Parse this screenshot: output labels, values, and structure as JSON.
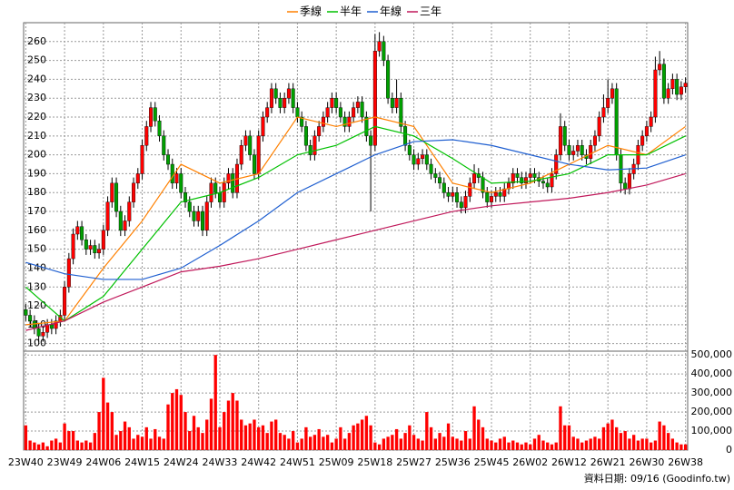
{
  "chart_data": {
    "type": "candlestick",
    "legend_position": "top",
    "grid": true,
    "categories": [
      "23W40",
      null,
      null,
      null,
      null,
      null,
      null,
      null,
      null,
      "23W49",
      null,
      null,
      null,
      null,
      null,
      null,
      null,
      null,
      "24W06",
      null,
      null,
      null,
      null,
      null,
      null,
      null,
      null,
      "24W15",
      null,
      null,
      null,
      null,
      null,
      null,
      null,
      null,
      "24W24",
      null,
      null,
      null,
      null,
      null,
      null,
      null,
      null,
      "24W33",
      null,
      null,
      null,
      null,
      null,
      null,
      null,
      null,
      "24W42",
      null,
      null,
      null,
      null,
      null,
      null,
      null,
      null,
      "24W51",
      null,
      null,
      null,
      null,
      null,
      null,
      null,
      null,
      "25W09",
      null,
      null,
      null,
      null,
      null,
      null,
      null,
      null,
      "25W18",
      null,
      null,
      null,
      null,
      null,
      null,
      null,
      null,
      "25W27",
      null,
      null,
      null,
      null,
      null,
      null,
      null,
      null,
      "25W36",
      null,
      null,
      null,
      null,
      null,
      null,
      null,
      null,
      "25W45",
      null,
      null,
      null,
      null,
      null,
      null,
      null,
      null,
      "26W02",
      null,
      null,
      null,
      null,
      null,
      null,
      null,
      null,
      "26W12",
      null,
      null,
      null,
      null,
      null,
      null,
      null,
      null,
      "26W21",
      null,
      null,
      null,
      null,
      null,
      null,
      null,
      null,
      "26W30",
      null,
      null,
      null,
      null,
      null,
      null,
      null,
      null,
      "26W38"
    ],
    "open": [
      118,
      115,
      112,
      108,
      104,
      106,
      110,
      108,
      112,
      115,
      130,
      145,
      158,
      162,
      155,
      150,
      152,
      148,
      150,
      160,
      175,
      185,
      170,
      160,
      165,
      175,
      185,
      190,
      205,
      215,
      225,
      218,
      210,
      200,
      195,
      185,
      190,
      180,
      175,
      170,
      165,
      170,
      160,
      175,
      185,
      180,
      175,
      185,
      190,
      180,
      195,
      205,
      210,
      200,
      190,
      210,
      220,
      225,
      235,
      230,
      225,
      230,
      235,
      225,
      220,
      215,
      205,
      200,
      210,
      215,
      220,
      225,
      230,
      225,
      220,
      215,
      220,
      225,
      228,
      220,
      210,
      205,
      255,
      260,
      250,
      230,
      225,
      230,
      215,
      205,
      200,
      195,
      198,
      200,
      195,
      190,
      188,
      185,
      180,
      178,
      180,
      175,
      172,
      178,
      185,
      190,
      188,
      180,
      175,
      178,
      180,
      178,
      182,
      185,
      190,
      188,
      185,
      188,
      190,
      188,
      186,
      185,
      183,
      190,
      200,
      215,
      205,
      200,
      202,
      205,
      200,
      198,
      205,
      210,
      220,
      225,
      230,
      235,
      200,
      185,
      182,
      190,
      195,
      205,
      210,
      215,
      220,
      245,
      248,
      230,
      235,
      240,
      232,
      236
    ],
    "high": [
      121,
      118,
      115,
      111,
      109,
      113,
      113,
      115,
      118,
      133,
      148,
      161,
      165,
      165,
      158,
      155,
      155,
      153,
      163,
      178,
      188,
      188,
      173,
      168,
      178,
      188,
      193,
      208,
      218,
      228,
      228,
      221,
      213,
      203,
      198,
      193,
      193,
      183,
      178,
      173,
      173,
      173,
      178,
      188,
      188,
      183,
      188,
      193,
      193,
      198,
      208,
      213,
      213,
      203,
      213,
      223,
      228,
      238,
      238,
      233,
      233,
      238,
      238,
      228,
      223,
      218,
      208,
      213,
      218,
      223,
      228,
      233,
      233,
      228,
      223,
      223,
      228,
      231,
      231,
      223,
      213,
      264,
      265,
      263,
      253,
      233,
      240,
      233,
      218,
      208,
      203,
      201,
      203,
      203,
      198,
      193,
      191,
      188,
      183,
      183,
      183,
      178,
      181,
      188,
      195,
      193,
      191,
      183,
      181,
      183,
      183,
      185,
      188,
      193,
      193,
      191,
      191,
      193,
      193,
      191,
      189,
      188,
      193,
      203,
      222,
      218,
      208,
      205,
      208,
      208,
      203,
      208,
      213,
      223,
      232,
      240,
      238,
      238,
      203,
      188,
      193,
      198,
      208,
      213,
      218,
      223,
      252,
      255,
      251,
      238,
      243,
      243,
      239,
      241
    ],
    "low": [
      112,
      109,
      105,
      101,
      101,
      103,
      105,
      105,
      109,
      112,
      127,
      142,
      155,
      152,
      147,
      147,
      145,
      145,
      147,
      157,
      172,
      167,
      157,
      157,
      162,
      172,
      182,
      187,
      202,
      212,
      215,
      207,
      197,
      192,
      182,
      182,
      177,
      172,
      167,
      162,
      162,
      157,
      157,
      172,
      177,
      172,
      172,
      182,
      177,
      177,
      192,
      202,
      197,
      187,
      187,
      207,
      217,
      222,
      227,
      222,
      222,
      227,
      222,
      217,
      212,
      202,
      197,
      197,
      207,
      212,
      217,
      222,
      222,
      217,
      212,
      212,
      217,
      222,
      217,
      207,
      170,
      202,
      252,
      247,
      227,
      222,
      222,
      212,
      202,
      197,
      192,
      192,
      195,
      192,
      187,
      185,
      182,
      177,
      175,
      175,
      172,
      169,
      169,
      175,
      182,
      185,
      177,
      172,
      172,
      175,
      175,
      175,
      179,
      182,
      185,
      182,
      182,
      185,
      185,
      183,
      182,
      180,
      180,
      187,
      197,
      202,
      197,
      197,
      199,
      197,
      195,
      195,
      202,
      207,
      217,
      222,
      227,
      197,
      180,
      179,
      179,
      187,
      192,
      202,
      207,
      212,
      217,
      242,
      227,
      227,
      232,
      229,
      229,
      233
    ],
    "close": [
      115,
      112,
      108,
      104,
      106,
      110,
      108,
      112,
      115,
      130,
      145,
      158,
      162,
      155,
      150,
      152,
      148,
      150,
      160,
      175,
      185,
      170,
      160,
      165,
      175,
      185,
      190,
      205,
      215,
      225,
      218,
      210,
      200,
      195,
      185,
      190,
      180,
      175,
      170,
      165,
      170,
      160,
      175,
      185,
      180,
      175,
      185,
      190,
      180,
      195,
      205,
      210,
      200,
      190,
      210,
      220,
      225,
      235,
      230,
      225,
      230,
      235,
      225,
      220,
      215,
      205,
      200,
      210,
      215,
      220,
      225,
      230,
      225,
      220,
      215,
      220,
      225,
      228,
      220,
      210,
      205,
      255,
      260,
      250,
      230,
      225,
      230,
      215,
      205,
      200,
      195,
      198,
      200,
      195,
      190,
      188,
      185,
      180,
      178,
      180,
      175,
      172,
      178,
      185,
      190,
      188,
      180,
      175,
      178,
      180,
      178,
      182,
      185,
      190,
      188,
      185,
      188,
      190,
      188,
      186,
      185,
      183,
      190,
      200,
      215,
      205,
      200,
      202,
      205,
      200,
      198,
      205,
      210,
      220,
      225,
      230,
      235,
      200,
      185,
      182,
      190,
      195,
      205,
      210,
      215,
      220,
      245,
      248,
      230,
      235,
      240,
      232,
      236,
      238
    ],
    "up_color": "#ff0000",
    "down_color": "#00a000",
    "ylim": [
      96,
      270
    ],
    "yticks": [
      100,
      110,
      120,
      130,
      140,
      150,
      160,
      170,
      180,
      190,
      200,
      210,
      220,
      230,
      240,
      250,
      260
    ],
    "moving_averages": [
      {
        "name": "季線",
        "color": "#ff8000",
        "x": [
          "23W40",
          "23W49",
          "24W06",
          "24W15",
          "24W24",
          "24W33",
          "24W42",
          "24W51",
          "25W09",
          "25W18",
          "25W27",
          "25W36",
          "25W45",
          "26W02",
          "26W12",
          "26W21",
          "26W30",
          "26W38"
        ],
        "values": [
          110,
          112,
          140,
          165,
          195,
          185,
          190,
          220,
          215,
          220,
          215,
          185,
          180,
          185,
          195,
          205,
          200,
          215
        ]
      },
      {
        "name": "半年",
        "color": "#00c000",
        "x": [
          "23W40",
          "23W49",
          "24W06",
          "24W15",
          "24W24",
          "24W33",
          "24W42",
          "24W51",
          "25W09",
          "25W18",
          "25W27",
          "25W36",
          "25W45",
          "26W02",
          "26W12",
          "26W21",
          "26W30",
          "26W38"
        ],
        "values": [
          130,
          112,
          125,
          150,
          175,
          180,
          188,
          200,
          205,
          215,
          210,
          198,
          185,
          186,
          190,
          200,
          200,
          210
        ]
      },
      {
        "name": "年線",
        "color": "#1f5fd0",
        "x": [
          "23W40",
          "23W49",
          "24W06",
          "24W15",
          "24W24",
          "24W33",
          "24W42",
          "24W51",
          "25W09",
          "25W18",
          "25W27",
          "25W36",
          "25W45",
          "26W02",
          "26W12",
          "26W21",
          "26W30",
          "26W38"
        ],
        "values": [
          143,
          137,
          134,
          134,
          140,
          152,
          165,
          180,
          190,
          200,
          207,
          208,
          205,
          200,
          195,
          192,
          193,
          200
        ]
      },
      {
        "name": "三年",
        "color": "#c0185a",
        "x": [
          "23W40",
          "23W49",
          "24W06",
          "24W15",
          "24W24",
          "24W33",
          "24W42",
          "24W51",
          "25W09",
          "25W18",
          "25W27",
          "25W36",
          "25W45",
          "26W02",
          "26W12",
          "26W21",
          "26W30",
          "26W38"
        ],
        "values": [
          107,
          112,
          122,
          130,
          138,
          141,
          145,
          150,
          155,
          160,
          165,
          170,
          173,
          175,
          177,
          180,
          184,
          190
        ]
      }
    ],
    "volume": {
      "color": "#ff0000",
      "ylim": [
        0,
        520000
      ],
      "yticks": [
        0,
        {
          "value": 100000,
          "label": "100,000"
        },
        {
          "value": 200000,
          "label": "200,000"
        },
        {
          "value": 300000,
          "label": "300,000"
        },
        {
          "value": 400000,
          "label": "400,000"
        },
        {
          "value": 500000,
          "label": "500,000"
        }
      ],
      "values": [
        130000,
        50000,
        40000,
        30000,
        40000,
        20000,
        50000,
        60000,
        40000,
        140000,
        100000,
        100000,
        50000,
        40000,
        50000,
        40000,
        90000,
        200000,
        380000,
        250000,
        200000,
        80000,
        100000,
        150000,
        120000,
        60000,
        80000,
        70000,
        120000,
        60000,
        110000,
        70000,
        60000,
        240000,
        300000,
        320000,
        290000,
        200000,
        100000,
        180000,
        120000,
        90000,
        160000,
        270000,
        500000,
        120000,
        200000,
        260000,
        300000,
        260000,
        160000,
        130000,
        140000,
        160000,
        120000,
        130000,
        90000,
        150000,
        160000,
        90000,
        80000,
        60000,
        100000,
        40000,
        60000,
        120000,
        70000,
        80000,
        110000,
        70000,
        80000,
        40000,
        60000,
        120000,
        60000,
        90000,
        130000,
        140000,
        160000,
        180000,
        130000,
        40000,
        30000,
        60000,
        70000,
        80000,
        110000,
        60000,
        90000,
        130000,
        80000,
        60000,
        50000,
        200000,
        120000,
        60000,
        90000,
        70000,
        140000,
        70000,
        60000,
        50000,
        100000,
        60000,
        230000,
        160000,
        120000,
        60000,
        50000,
        40000,
        60000,
        70000,
        40000,
        50000,
        40000,
        30000,
        40000,
        30000,
        60000,
        80000,
        50000,
        40000,
        30000,
        40000,
        230000,
        130000,
        130000,
        70000,
        60000,
        40000,
        50000,
        60000,
        70000,
        60000,
        120000,
        140000,
        160000,
        120000,
        90000,
        100000,
        60000,
        80000,
        50000,
        60000,
        60000,
        40000,
        50000,
        150000,
        130000,
        90000,
        60000,
        40000,
        30000,
        30000
      ]
    },
    "footnote": "資料日期: 09/16 (Goodinfo.tw)"
  }
}
